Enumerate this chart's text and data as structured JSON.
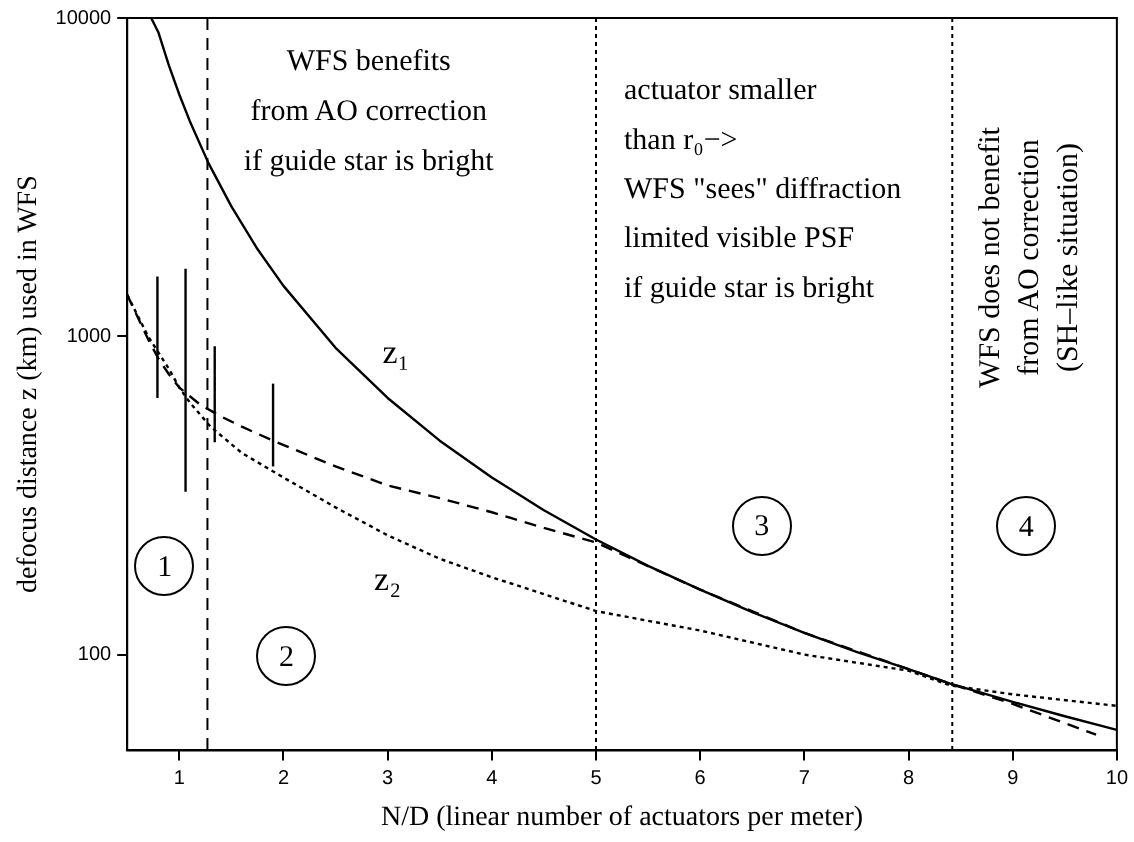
{
  "chart_data": {
    "type": "line",
    "xlabel": "N/D (linear number of actuators per meter)",
    "ylabel": "defocus distance z (km) used in WFS",
    "xlim": [
      0.5,
      10
    ],
    "xticks": [
      1,
      2,
      3,
      4,
      5,
      6,
      7,
      8,
      9,
      10
    ],
    "ylim": [
      50,
      10000
    ],
    "yticks": [
      100,
      1000,
      10000
    ],
    "log": "y",
    "grid": false,
    "legend": false,
    "series": [
      {
        "color": "#000000",
        "line_style": "solid",
        "x": [
          0.73,
          0.8,
          0.9,
          1,
          1.1,
          1.28,
          1.5,
          1.75,
          2,
          2.5,
          3,
          3.5,
          4,
          4.5,
          5,
          5.5,
          6,
          6.5,
          7,
          7.5,
          8,
          8.4,
          9,
          9.5,
          10
        ],
        "values": [
          10000,
          9000,
          7100,
          5750,
          4750,
          3500,
          2560,
          1880,
          1440,
          920,
          640,
          470,
          360,
          284,
          230,
          190,
          160,
          136,
          117,
          102,
          90,
          81,
          71,
          64,
          58
        ]
      },
      {
        "color": "#000000",
        "line_style": "dashed",
        "x": [
          0.5,
          0.6,
          0.7,
          0.8,
          0.9,
          1,
          1.2,
          1.4,
          1.6,
          1.9,
          2.5,
          3,
          3.5,
          4,
          4.5,
          5,
          6,
          7,
          8,
          8.4,
          9,
          9.8
        ],
        "values": [
          1350,
          1150,
          980,
          850,
          760,
          690,
          610,
          560,
          520,
          470,
          390,
          340,
          310,
          280,
          250,
          225,
          160,
          117,
          90,
          81,
          70,
          56
        ]
      },
      {
        "color": "#000000",
        "line_style": "dotted",
        "x": [
          0.5,
          0.7,
          0.9,
          1,
          1.1,
          1.3,
          1.6,
          2,
          2.5,
          3,
          3.5,
          4,
          5,
          6,
          7,
          8,
          8.4,
          9,
          10
        ],
        "values": [
          1350,
          1000,
          790,
          690,
          620,
          520,
          430,
          360,
          290,
          237,
          200,
          175,
          137,
          119,
          100,
          89,
          80,
          75,
          69
        ]
      },
      {
        "color": "#000000",
        "line_style": "solid",
        "x": [
          0.79,
          0.79
        ],
        "values": [
          640,
          1540
        ]
      },
      {
        "color": "#000000",
        "line_style": "solid",
        "x": [
          1.06,
          1.06
        ],
        "values": [
          325,
          1630
        ]
      },
      {
        "color": "#000000",
        "line_style": "solid",
        "x": [
          1.34,
          1.34
        ],
        "values": [
          465,
          930
        ]
      },
      {
        "color": "#000000",
        "line_style": "solid",
        "x": [
          1.9,
          1.9
        ],
        "values": [
          390,
          710
        ]
      }
    ],
    "ref_lines": [
      {
        "axis": "x",
        "value": 1.27,
        "line_style": "dashed"
      },
      {
        "axis": "x",
        "value": 5,
        "line_style": "dotted"
      },
      {
        "axis": "x",
        "value": 8.42,
        "line_style": "dotted"
      }
    ],
    "annotations": [
      "WFS benefits\nfrom AO correction\nif guide star is bright",
      "actuator smaller\nthan r₀−>\nWFS \"sees\" diffraction\nlimited visible PSF\nif guide star is bright",
      "WFS does not benefit\nfrom AO correction\n(SH–like situation)",
      "1",
      "2",
      "3",
      "4",
      "z₁",
      "z₂"
    ]
  }
}
